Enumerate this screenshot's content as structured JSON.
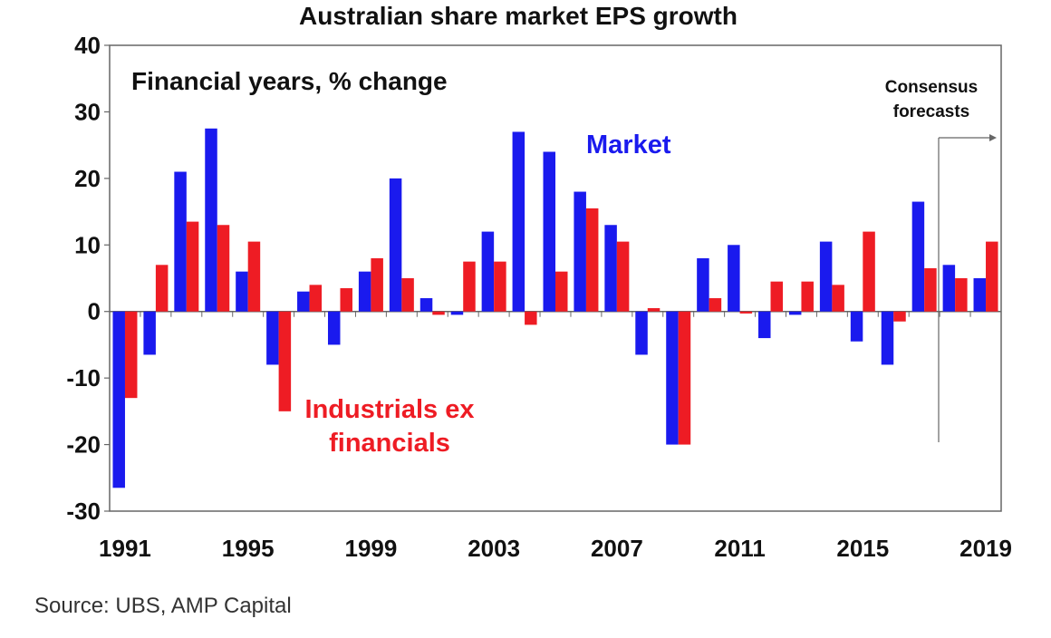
{
  "chart_data": {
    "type": "bar",
    "title": "Australian share market EPS growth",
    "subtitle": "Financial years, % change",
    "categories": [
      "1991",
      "1992",
      "1993",
      "1994",
      "1995",
      "1996",
      "1997",
      "1998",
      "1999",
      "2000",
      "2001",
      "2002",
      "2003",
      "2004",
      "2005",
      "2006",
      "2007",
      "2008",
      "2009",
      "2010",
      "2011",
      "2012",
      "2013",
      "2014",
      "2015",
      "2016",
      "2017",
      "2018",
      "2019"
    ],
    "x_tick_labels": [
      "1991",
      "1995",
      "1999",
      "2003",
      "2007",
      "2011",
      "2015",
      "2019"
    ],
    "y_ticks": [
      40,
      30,
      20,
      10,
      0,
      -10,
      -20,
      -30
    ],
    "ylim": [
      -30,
      40
    ],
    "series": [
      {
        "name": "Market",
        "color": "#1a1aee",
        "values": [
          -26.5,
          -6.5,
          21,
          27.5,
          6,
          -8,
          3,
          -5,
          6,
          20,
          2,
          -0.5,
          12,
          27,
          24,
          18,
          13,
          -6.5,
          -20,
          8,
          10,
          -4,
          -0.5,
          10.5,
          -4.5,
          -8,
          16.5,
          7,
          5
        ]
      },
      {
        "name": "Industrials ex financials",
        "color": "#ee1c24",
        "values": [
          -13,
          7,
          13.5,
          13,
          10.5,
          -15,
          4,
          3.5,
          8,
          5,
          -0.5,
          7.5,
          7.5,
          -2,
          6,
          15.5,
          10.5,
          0.5,
          -20,
          2,
          -0.3,
          4.5,
          4.5,
          4,
          12,
          -1.5,
          6.5,
          5,
          10.5
        ]
      }
    ],
    "annotations": {
      "market_label": "Market",
      "industrials_label_line1": "Industrials ex",
      "industrials_label_line2": "financials",
      "forecast_line1": "Consensus",
      "forecast_line2": "forecasts"
    },
    "source": "Source: UBS, AMP Capital",
    "grid": false,
    "legend": "inline"
  }
}
